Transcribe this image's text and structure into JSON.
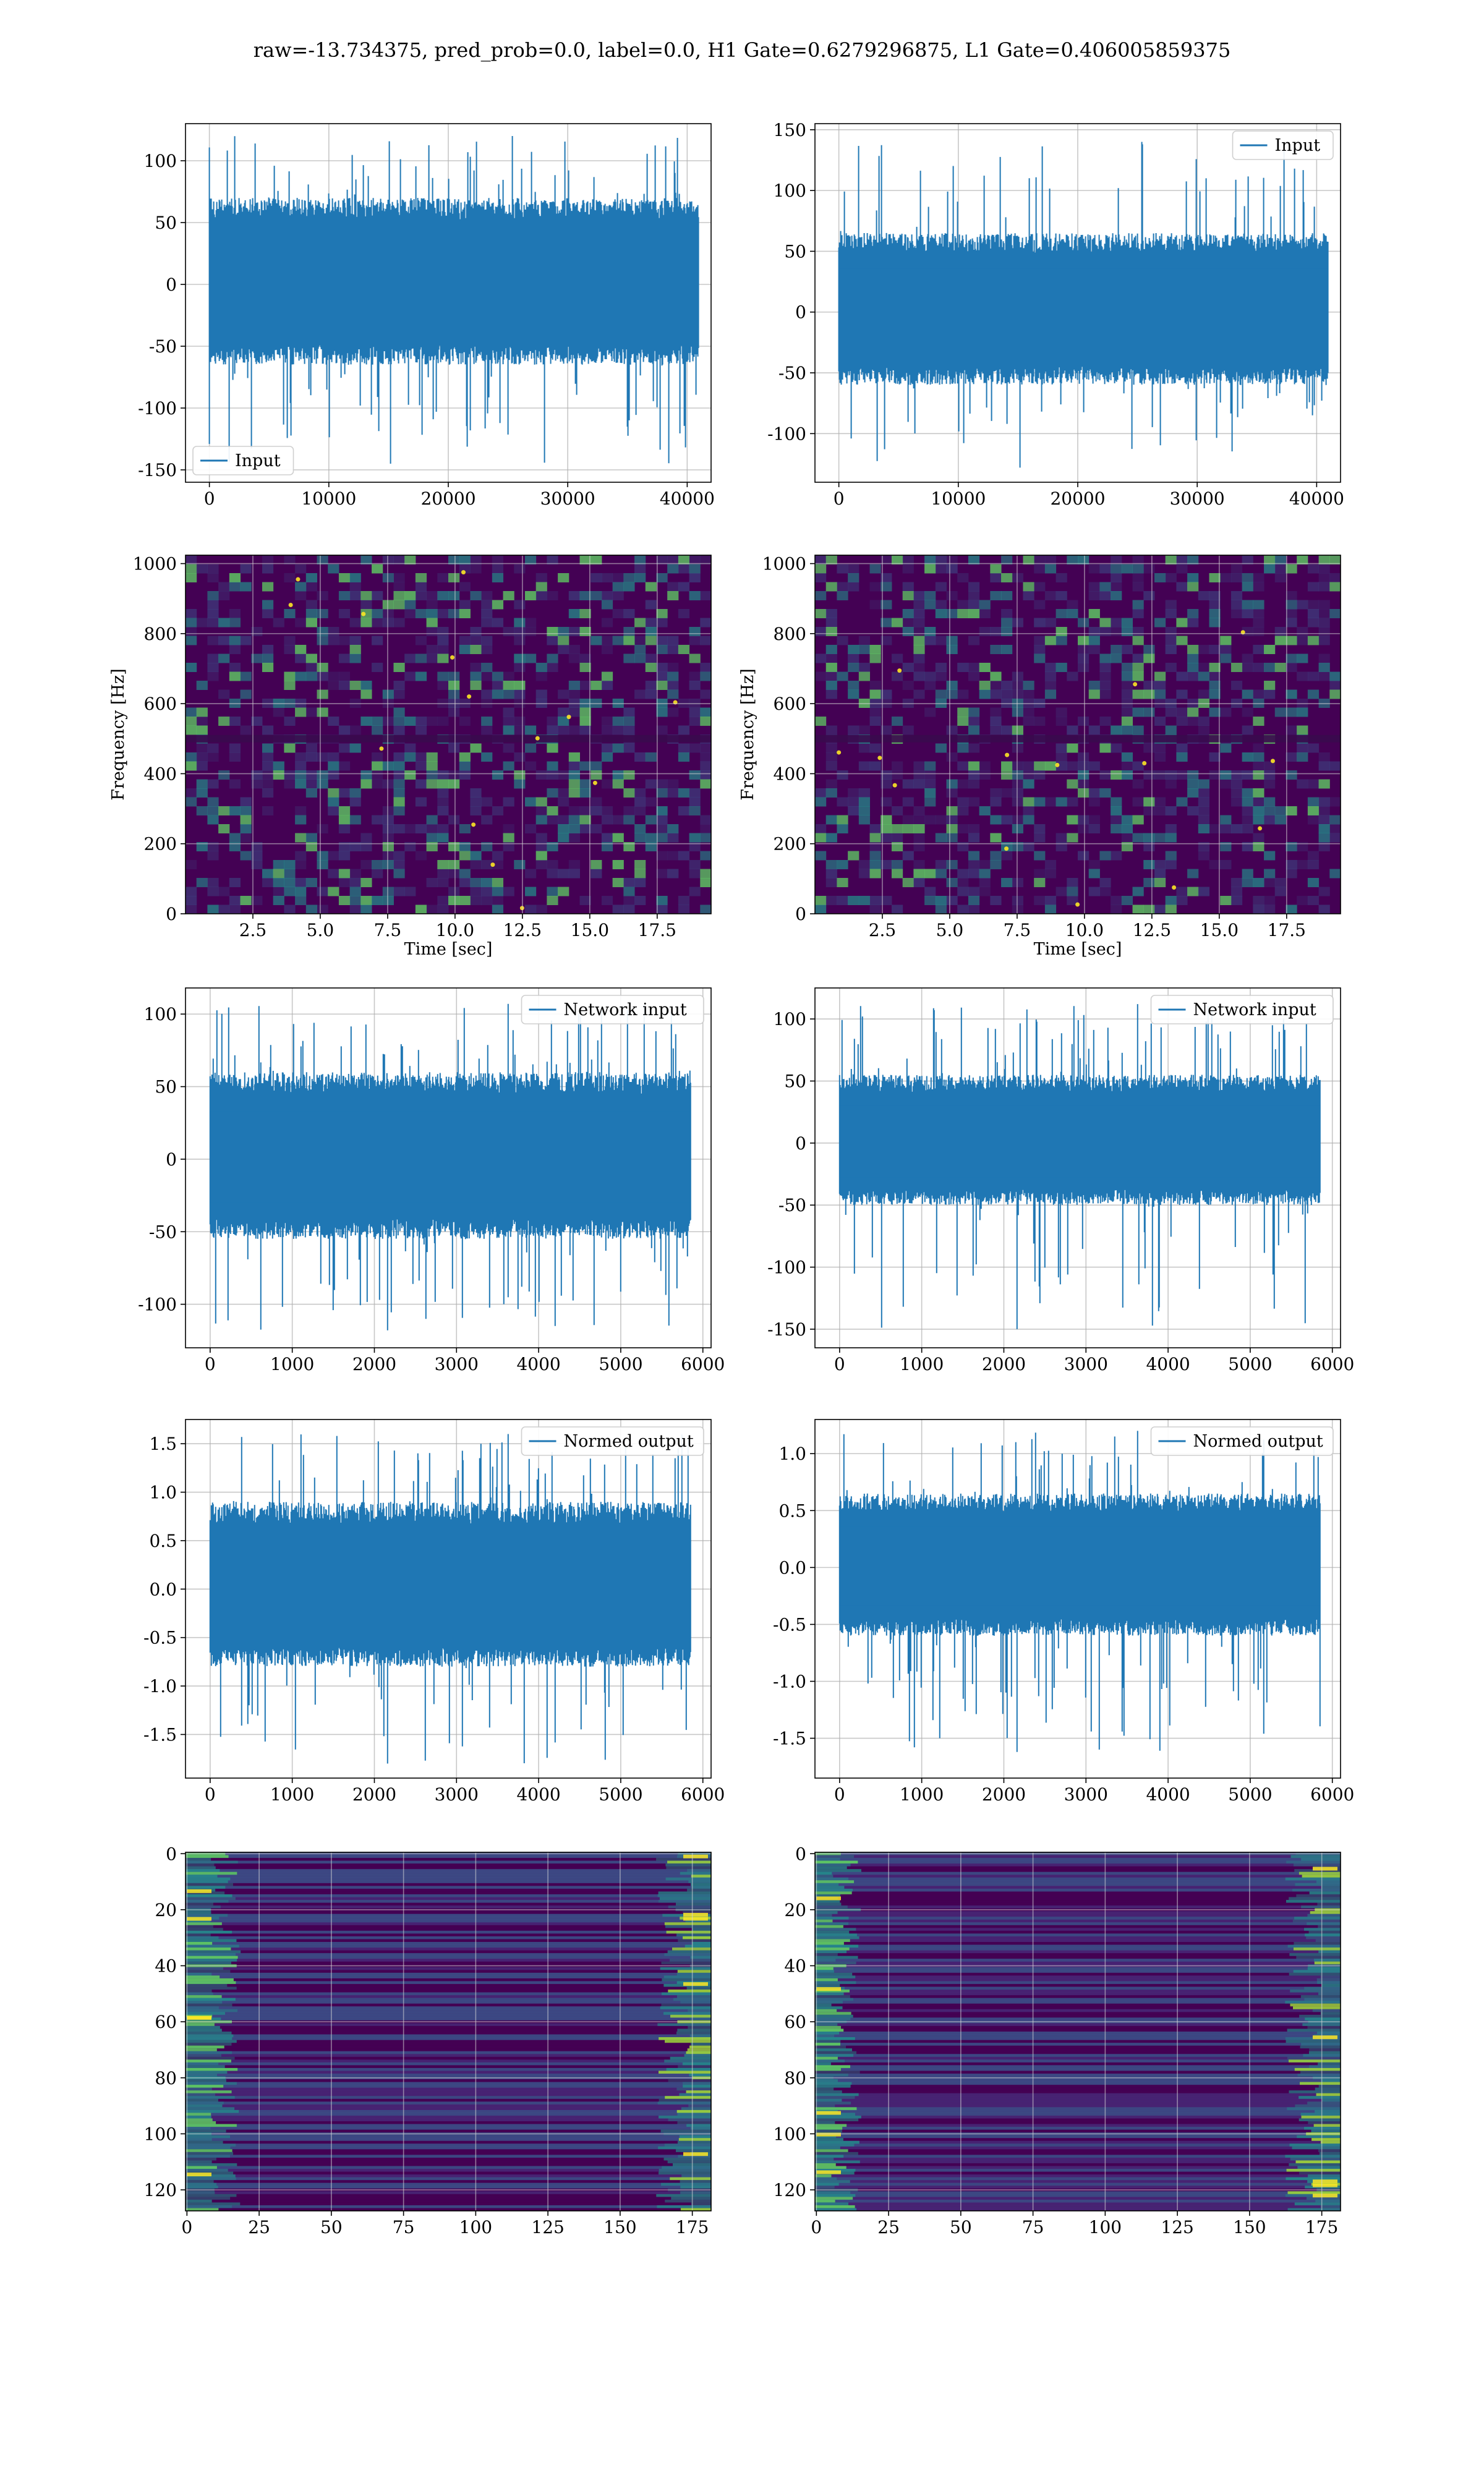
{
  "figure": {
    "title": "raw=-13.734375, pred_prob=0.0, label=0.0, H1 Gate=0.6279296875, L1 Gate=0.406005859375",
    "colors": {
      "line": "#1f77b4",
      "grid": "#b0b0b0",
      "axes": "#000000",
      "heat_low": "#440154",
      "heat_mid": "#21918c",
      "heat_high": "#fde725"
    }
  },
  "chart_data": [
    {
      "type": "line",
      "panel": "row1-left",
      "title": "",
      "xlabel": "",
      "ylabel": "",
      "legend": {
        "label": "Input",
        "loc": "lower-left"
      },
      "xlim": [
        -2000,
        42000
      ],
      "ylim": [
        -160,
        130
      ],
      "xticks": [
        0,
        10000,
        20000,
        30000,
        40000
      ],
      "yticks": [
        -150,
        -100,
        -50,
        0,
        50,
        100
      ],
      "x": [
        0,
        40960
      ],
      "y_range": [
        -145,
        120
      ],
      "typical_envelope": [
        -65,
        70
      ],
      "grid": true
    },
    {
      "type": "line",
      "panel": "row1-right",
      "title": "",
      "xlabel": "",
      "ylabel": "",
      "legend": {
        "label": "Input",
        "loc": "upper-right"
      },
      "xlim": [
        -2000,
        42000
      ],
      "ylim": [
        -140,
        155
      ],
      "xticks": [
        0,
        10000,
        20000,
        30000,
        40000
      ],
      "yticks": [
        -100,
        -50,
        0,
        50,
        100,
        150
      ],
      "x": [
        0,
        40960
      ],
      "y_range": [
        -128,
        140
      ],
      "typical_envelope": [
        -60,
        65
      ],
      "grid": true
    },
    {
      "type": "heatmap",
      "panel": "row2-left",
      "title": "",
      "xlabel": "Time [sec]",
      "ylabel": "Frequency [Hz]",
      "xlim": [
        0,
        19.5
      ],
      "ylim": [
        0,
        1024
      ],
      "xticks": [
        2.5,
        5.0,
        7.5,
        10.0,
        12.5,
        15.0,
        17.5
      ],
      "xtick_labels": [
        "2.5",
        "5.0",
        "7.5",
        "10.0",
        "12.5",
        "15.0",
        "17.5"
      ],
      "yticks": [
        0,
        200,
        400,
        600,
        800,
        1000
      ],
      "colormap": "viridis",
      "grid": true
    },
    {
      "type": "heatmap",
      "panel": "row2-right",
      "title": "",
      "xlabel": "Time [sec]",
      "ylabel": "Frequency [Hz]",
      "xlim": [
        0,
        19.5
      ],
      "ylim": [
        0,
        1024
      ],
      "xticks": [
        2.5,
        5.0,
        7.5,
        10.0,
        12.5,
        15.0,
        17.5
      ],
      "xtick_labels": [
        "2.5",
        "5.0",
        "7.5",
        "10.0",
        "12.5",
        "15.0",
        "17.5"
      ],
      "yticks": [
        0,
        200,
        400,
        600,
        800,
        1000
      ],
      "colormap": "viridis",
      "grid": true
    },
    {
      "type": "line",
      "panel": "row3-left",
      "title": "",
      "xlabel": "",
      "ylabel": "",
      "legend": {
        "label": "Network input",
        "loc": "upper-right"
      },
      "xlim": [
        -300,
        6100
      ],
      "ylim": [
        -130,
        118
      ],
      "xticks": [
        0,
        1000,
        2000,
        3000,
        4000,
        5000,
        6000
      ],
      "yticks": [
        -100,
        -50,
        0,
        50,
        100
      ],
      "x": [
        0,
        5850
      ],
      "y_range": [
        -118,
        107
      ],
      "typical_envelope": [
        -55,
        60
      ],
      "grid": true
    },
    {
      "type": "line",
      "panel": "row3-right",
      "title": "",
      "xlabel": "",
      "ylabel": "",
      "legend": {
        "label": "Network input",
        "loc": "upper-right"
      },
      "xlim": [
        -300,
        6100
      ],
      "ylim": [
        -165,
        125
      ],
      "xticks": [
        0,
        1000,
        2000,
        3000,
        4000,
        5000,
        6000
      ],
      "yticks": [
        -150,
        -100,
        -50,
        0,
        50,
        100
      ],
      "x": [
        0,
        5850
      ],
      "y_range": [
        -150,
        112
      ],
      "typical_envelope": [
        -50,
        55
      ],
      "grid": true
    },
    {
      "type": "line",
      "panel": "row4-left",
      "title": "",
      "xlabel": "",
      "ylabel": "",
      "legend": {
        "label": "Normed output",
        "loc": "upper-right"
      },
      "xlim": [
        -300,
        6100
      ],
      "ylim": [
        -1.95,
        1.75
      ],
      "xticks": [
        0,
        1000,
        2000,
        3000,
        4000,
        5000,
        6000
      ],
      "yticks": [
        -1.5,
        -1.0,
        -0.5,
        0.0,
        0.5,
        1.0,
        1.5
      ],
      "ytick_labels": [
        "-1.5",
        "-1.0",
        "-0.5",
        "0.0",
        "0.5",
        "1.0",
        "1.5"
      ],
      "x": [
        0,
        5850
      ],
      "y_range": [
        -1.8,
        1.6
      ],
      "typical_envelope": [
        -0.8,
        0.9
      ],
      "grid": true
    },
    {
      "type": "line",
      "panel": "row4-right",
      "title": "",
      "xlabel": "",
      "ylabel": "",
      "legend": {
        "label": "Normed output",
        "loc": "upper-right"
      },
      "xlim": [
        -300,
        6100
      ],
      "ylim": [
        -1.85,
        1.3
      ],
      "xticks": [
        0,
        1000,
        2000,
        3000,
        4000,
        5000,
        6000
      ],
      "yticks": [
        -1.5,
        -1.0,
        -0.5,
        0.0,
        0.5,
        1.0
      ],
      "ytick_labels": [
        "-1.5",
        "-1.0",
        "-0.5",
        "0.0",
        "0.5",
        "1.0"
      ],
      "x": [
        0,
        5850
      ],
      "y_range": [
        -1.62,
        1.2
      ],
      "typical_envelope": [
        -0.6,
        0.65
      ],
      "grid": true
    },
    {
      "type": "heatmap",
      "panel": "row5-left",
      "title": "",
      "xlabel": "",
      "ylabel": "",
      "xlim": [
        -0.5,
        181.5
      ],
      "ylim": [
        127.5,
        -0.5
      ],
      "xticks": [
        0,
        25,
        50,
        75,
        100,
        125,
        150,
        175
      ],
      "yticks": [
        0,
        20,
        40,
        60,
        80,
        100,
        120
      ],
      "colormap": "viridis",
      "grid": true
    },
    {
      "type": "heatmap",
      "panel": "row5-right",
      "title": "",
      "xlabel": "",
      "ylabel": "",
      "xlim": [
        -0.5,
        181.5
      ],
      "ylim": [
        127.5,
        -0.5
      ],
      "xticks": [
        0,
        25,
        50,
        75,
        100,
        125,
        150,
        175
      ],
      "yticks": [
        0,
        20,
        40,
        60,
        80,
        100,
        120
      ],
      "colormap": "viridis",
      "grid": true
    }
  ]
}
